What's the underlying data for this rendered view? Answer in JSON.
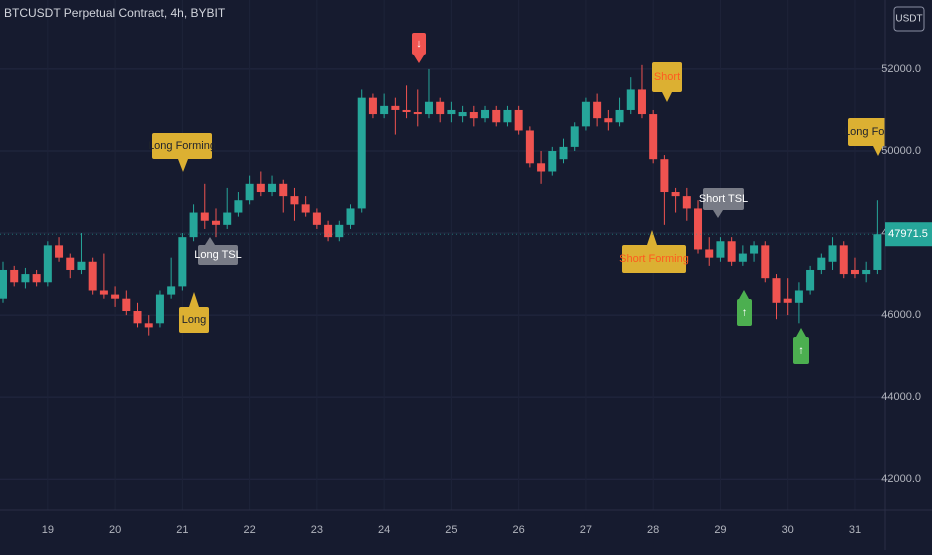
{
  "chart_data": {
    "type": "candlestick",
    "title": "BTCUSDT Perpetual Contract, 4h, BYBIT",
    "currency": "USDT",
    "categories": [
      null,
      null,
      null,
      null,
      "19",
      null,
      null,
      null,
      null,
      null,
      "20",
      null,
      null,
      null,
      null,
      null,
      "21",
      null,
      null,
      null,
      null,
      null,
      "22",
      null,
      null,
      null,
      null,
      null,
      "23",
      null,
      null,
      null,
      null,
      null,
      "24",
      null,
      null,
      null,
      null,
      null,
      "25",
      null,
      null,
      null,
      null,
      null,
      "26",
      null,
      null,
      null,
      null,
      null,
      "27",
      null,
      null,
      null,
      null,
      null,
      "28",
      null,
      null,
      null,
      null,
      null,
      "29",
      null,
      null,
      null,
      null,
      null,
      "30",
      null,
      null,
      null,
      null,
      null,
      "31",
      null,
      null
    ],
    "open": [
      46400,
      47100,
      46800,
      47000,
      46800,
      47700,
      47400,
      47100,
      47300,
      46600,
      46500,
      46400,
      46100,
      45800,
      45800,
      46500,
      46700,
      47900,
      48500,
      48300,
      48200,
      48500,
      48800,
      49200,
      49000,
      49200,
      48900,
      48700,
      48500,
      48200,
      47900,
      48200,
      48600,
      51300,
      50900,
      51100,
      51000,
      50950,
      50900,
      51200,
      50900,
      50850,
      50950,
      50800,
      51000,
      50700,
      51000,
      50500,
      49700,
      49500,
      49800,
      50100,
      50600,
      51200,
      50800,
      50700,
      51000,
      51500,
      50900,
      49800,
      49000,
      48900,
      48600,
      47600,
      47400,
      47800,
      47300,
      47500,
      47700,
      46900,
      46400,
      46300,
      46600,
      47100,
      47300,
      47700,
      47100,
      47000,
      47100
    ],
    "high": [
      47300,
      47200,
      47150,
      47100,
      47800,
      47900,
      47500,
      48000,
      47400,
      47500,
      46700,
      46600,
      46300,
      46000,
      46600,
      47400,
      48000,
      48700,
      49200,
      48600,
      49100,
      49000,
      49400,
      49500,
      49400,
      49300,
      49100,
      48900,
      48600,
      48300,
      48300,
      48700,
      51500,
      51400,
      51400,
      51300,
      51600,
      51500,
      52000,
      51300,
      51200,
      51100,
      51100,
      51100,
      51100,
      51100,
      51100,
      50600,
      50000,
      50100,
      50300,
      50700,
      51300,
      51400,
      51000,
      51300,
      51800,
      52100,
      51000,
      49900,
      49100,
      49100,
      48800,
      47900,
      47900,
      47900,
      47700,
      47800,
      47800,
      47000,
      46900,
      46800,
      47200,
      47500,
      47900,
      47800,
      47400,
      47300,
      48800
    ],
    "low": [
      46300,
      46700,
      46650,
      46700,
      46700,
      47300,
      46900,
      47000,
      46500,
      46400,
      46200,
      46000,
      45700,
      45500,
      45700,
      46400,
      46600,
      47800,
      48100,
      47900,
      48100,
      48400,
      48700,
      48900,
      48900,
      48500,
      48300,
      48400,
      48100,
      47800,
      47800,
      48100,
      48500,
      50800,
      50800,
      50400,
      50800,
      50600,
      50800,
      50700,
      50700,
      50700,
      50600,
      50700,
      50600,
      50600,
      50400,
      49600,
      49200,
      49400,
      49700,
      50000,
      50500,
      50600,
      50500,
      50600,
      50900,
      50800,
      49700,
      48200,
      48500,
      48300,
      47500,
      47200,
      47300,
      47200,
      47200,
      47300,
      46800,
      45900,
      46000,
      45800,
      46500,
      47000,
      47100,
      46900,
      46900,
      46800,
      47000
    ],
    "close": [
      47100,
      46800,
      47000,
      46800,
      47700,
      47400,
      47100,
      47300,
      46600,
      46500,
      46400,
      46100,
      45800,
      45700,
      46500,
      46700,
      47900,
      48500,
      48300,
      48200,
      48500,
      48800,
      49200,
      49000,
      49200,
      48900,
      48700,
      48500,
      48200,
      47900,
      48200,
      48600,
      51300,
      50900,
      51100,
      51000,
      50950,
      50900,
      51200,
      50900,
      51000,
      50950,
      50800,
      51000,
      50700,
      51000,
      50500,
      49700,
      49500,
      50000,
      50100,
      50600,
      51200,
      50800,
      50700,
      51000,
      51500,
      50900,
      49800,
      49000,
      48900,
      48600,
      47600,
      47400,
      47800,
      47300,
      47500,
      47700,
      46900,
      46300,
      46300,
      46600,
      47100,
      47400,
      47700,
      47000,
      47000,
      47100,
      47971.5
    ],
    "up_color": "#26a69a",
    "down_color": "#ef5350",
    "last_price": 47971.5,
    "ylim": [
      41250,
      53680
    ],
    "yticks": [
      {
        "value": 42000,
        "label": "42000.0"
      },
      {
        "value": 44000,
        "label": "44000.0"
      },
      {
        "value": 46000,
        "label": "46000.0"
      },
      {
        "value": 48000,
        "label": "48000.0"
      },
      {
        "value": 50000,
        "label": "50000.0"
      },
      {
        "value": 52000,
        "label": "52000.0"
      }
    ],
    "grid": true,
    "annotations": [
      {
        "text": "Long Forming"
      },
      {
        "text": "Long"
      },
      {
        "text": "Long TSL"
      },
      {
        "text": "↓"
      },
      {
        "text": "Short"
      },
      {
        "text": "Short Forming"
      },
      {
        "text": "Short TSL"
      },
      {
        "text": "↑"
      },
      {
        "text": "↑"
      },
      {
        "text": "Long Forming"
      }
    ]
  }
}
